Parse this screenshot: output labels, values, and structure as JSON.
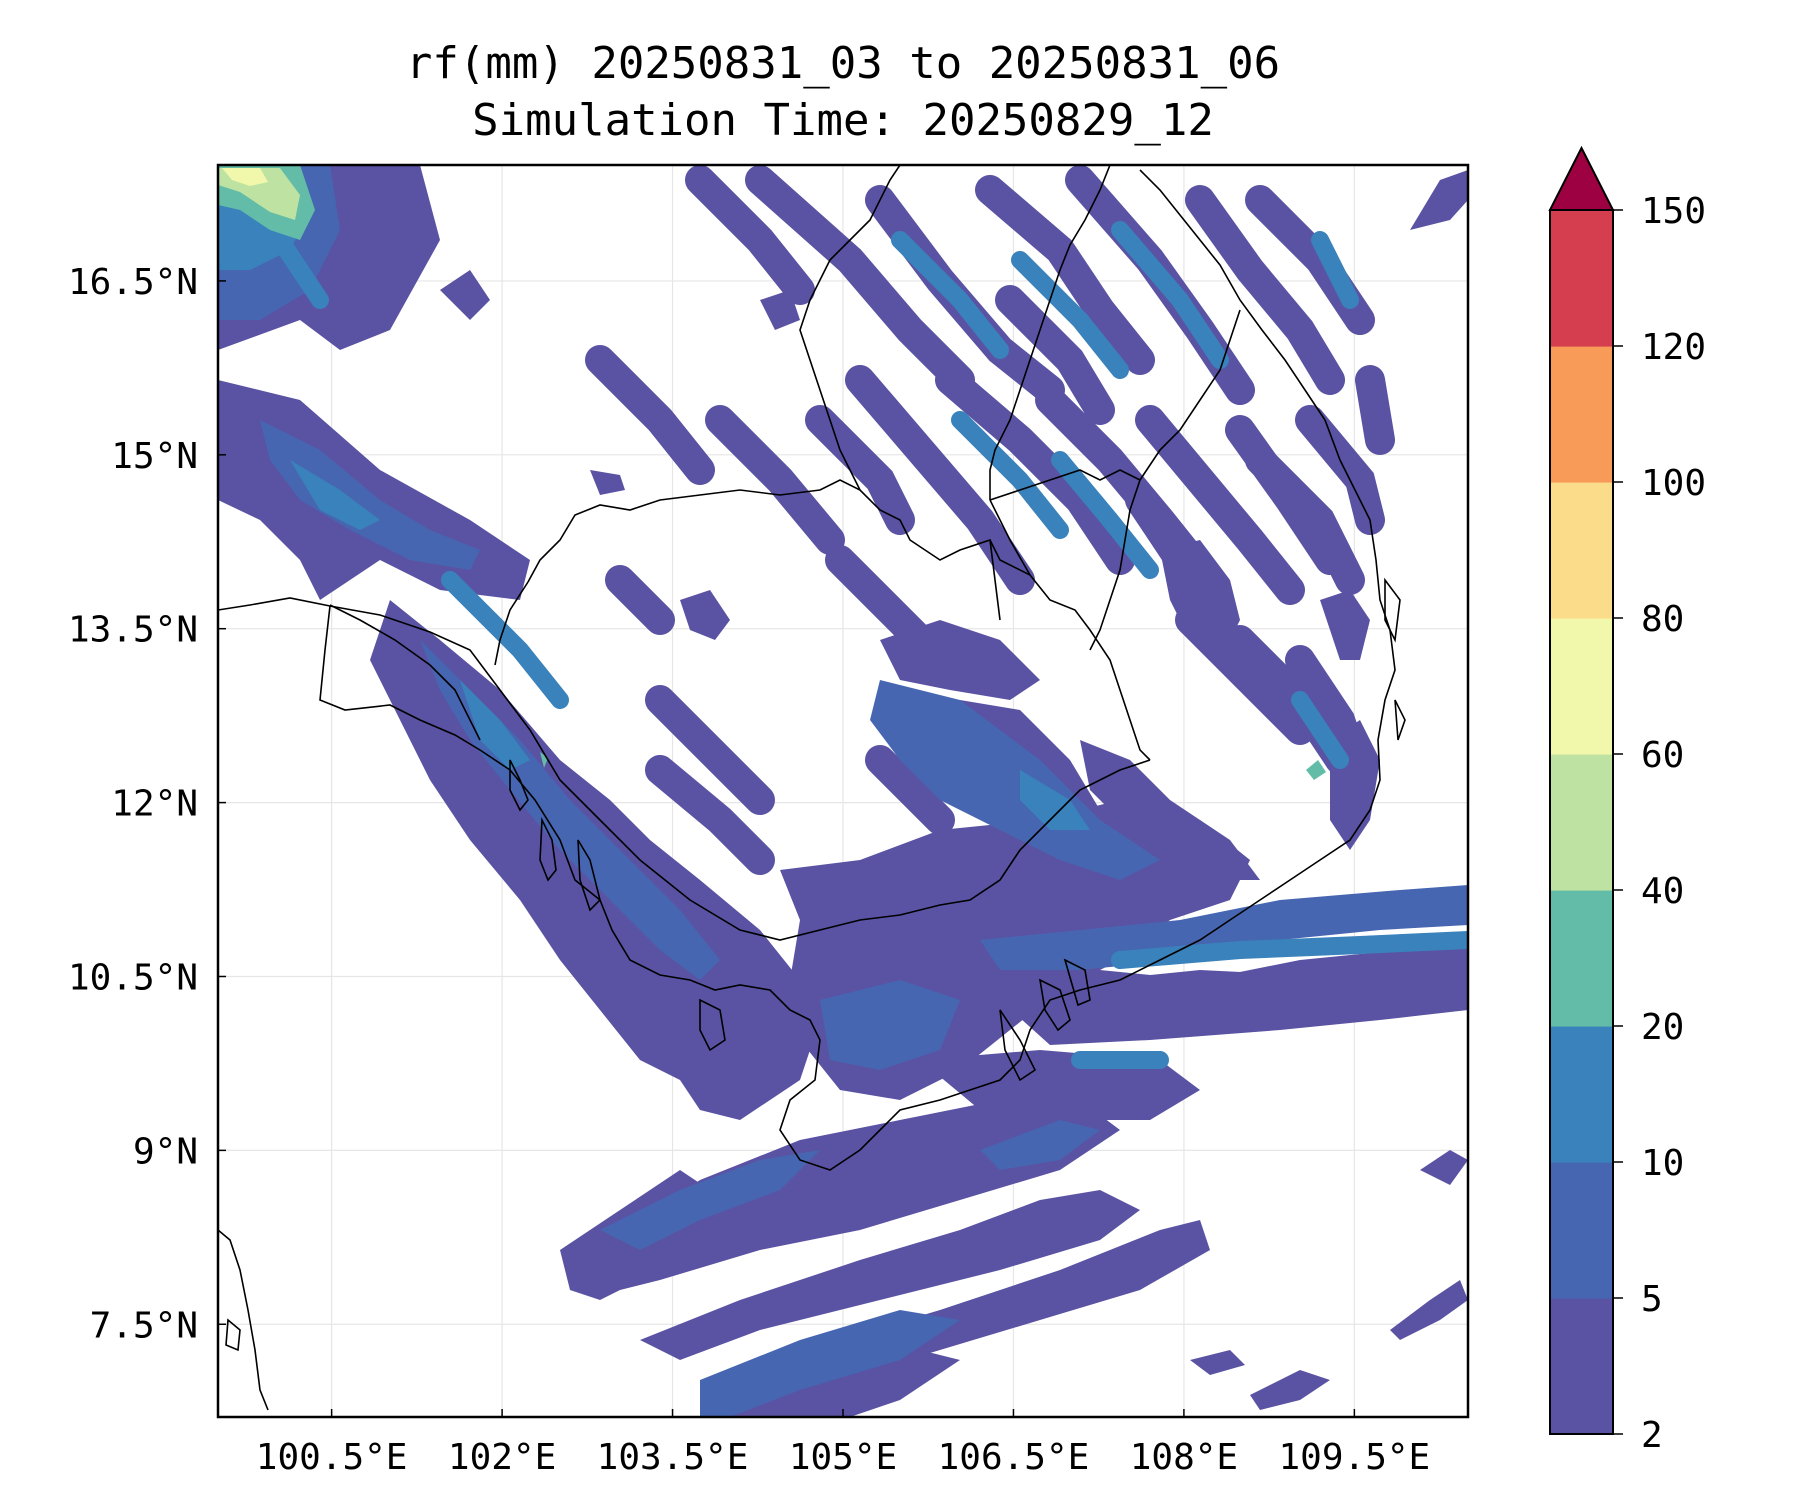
{
  "map": {
    "title": "rf(mm) 20250831_03 to 20250831_06",
    "subtitle": "Simulation Time: 20250829_12",
    "lon_range": [
      99.5,
      110.5
    ],
    "lat_range": [
      6.7,
      17.5
    ],
    "lon_ticks": [
      {
        "value": 100.5,
        "label": "100.5°E"
      },
      {
        "value": 102,
        "label": "102°E"
      },
      {
        "value": 103.5,
        "label": "103.5°E"
      },
      {
        "value": 105,
        "label": "105°E"
      },
      {
        "value": 106.5,
        "label": "106.5°E"
      },
      {
        "value": 108,
        "label": "108°E"
      },
      {
        "value": 109.5,
        "label": "109.5°E"
      }
    ],
    "lat_ticks": [
      {
        "value": 16.5,
        "label": "16.5°N"
      },
      {
        "value": 15,
        "label": "15°N"
      },
      {
        "value": 13.5,
        "label": "13.5°N"
      },
      {
        "value": 12,
        "label": "12°N"
      },
      {
        "value": 10.5,
        "label": "10.5°N"
      },
      {
        "value": 9,
        "label": "9°N"
      },
      {
        "value": 7.5,
        "label": "7.5°N"
      }
    ],
    "grid": true,
    "extend": "max"
  },
  "colorbar": {
    "levels": [
      2,
      5,
      10,
      20,
      40,
      60,
      80,
      100,
      120,
      150
    ],
    "labels": [
      "2",
      "5",
      "10",
      "20",
      "40",
      "60",
      "80",
      "100",
      "120",
      "150"
    ],
    "colors": [
      "#5a52a3",
      "#4766b2",
      "#3a82bb",
      "#62bca7",
      "#bde2a1",
      "#f2f8ab",
      "#fbdc8a",
      "#f89b58",
      "#d53e4f"
    ],
    "extend_color": "#9e0142"
  }
}
